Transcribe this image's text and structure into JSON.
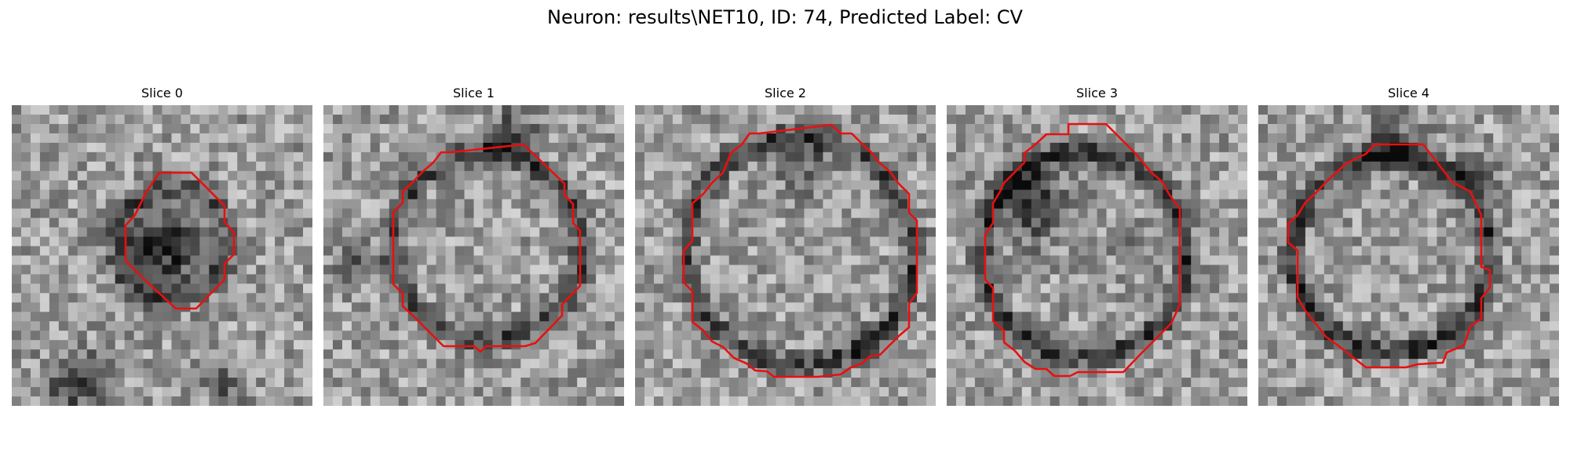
{
  "figure": {
    "suptitle": "Neuron: results\\NET10, ID: 74, Predicted Label: CV"
  },
  "contour_color": "#e8100f",
  "slices": [
    {
      "title": "Slice 0"
    },
    {
      "title": "Slice 1"
    },
    {
      "title": "Slice 2"
    },
    {
      "title": "Slice 3"
    },
    {
      "title": "Slice 4"
    }
  ]
}
